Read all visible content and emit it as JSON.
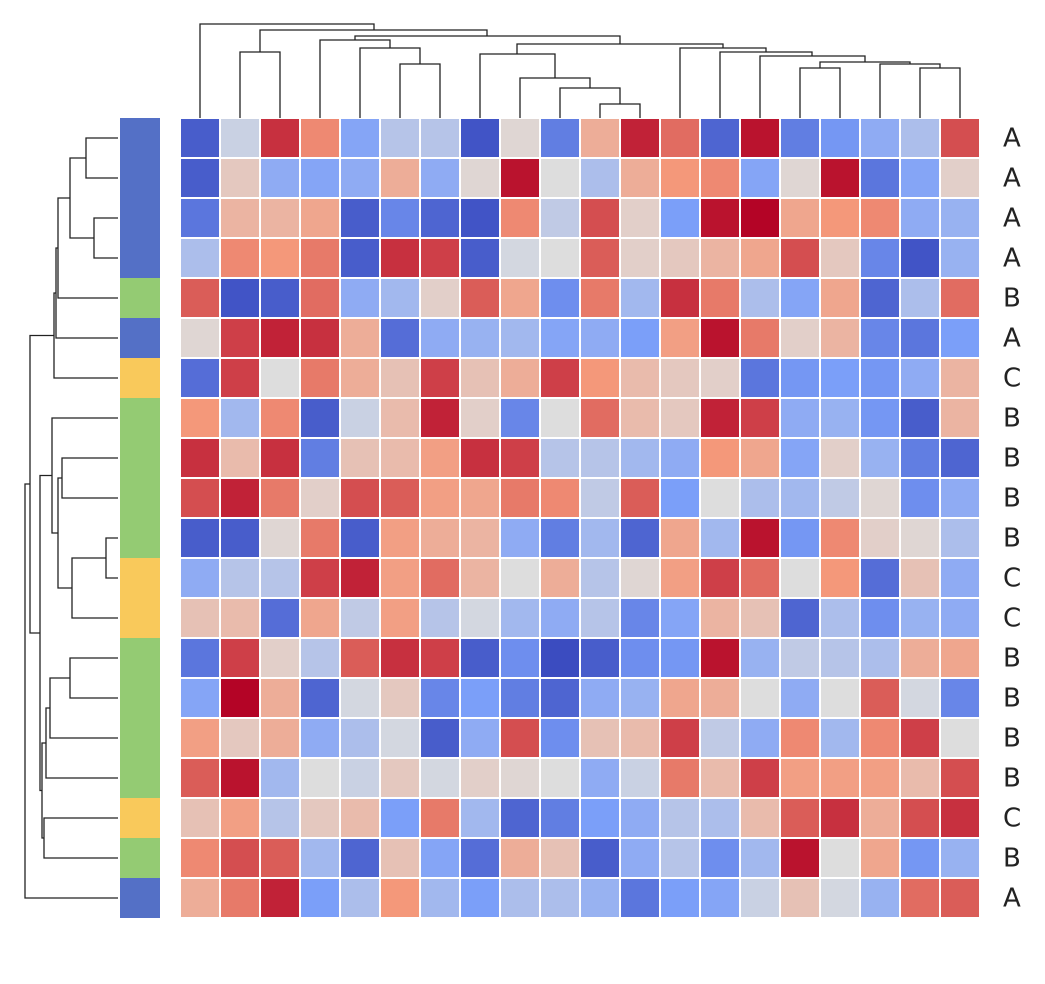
{
  "chart_data": {
    "type": "heatmap",
    "colormap": "coolwarm",
    "vlim": [
      -1,
      1
    ],
    "row_labels": [
      "A",
      "A",
      "A",
      "A",
      "B",
      "A",
      "C",
      "B",
      "B",
      "B",
      "B",
      "C",
      "C",
      "B",
      "B",
      "B",
      "B",
      "C",
      "B",
      "A"
    ],
    "group_colors": {
      "A": "#5470c6",
      "B": "#94cb73",
      "C": "#f9c95b"
    },
    "values": [
      [
        -0.9,
        -0.1,
        0.85,
        0.55,
        -0.45,
        -0.2,
        -0.2,
        -0.95,
        0.05,
        -0.7,
        0.35,
        0.9,
        0.65,
        -0.85,
        0.95,
        -0.7,
        -0.55,
        -0.4,
        -0.25,
        0.75
      ],
      [
        -0.9,
        0.15,
        -0.4,
        -0.45,
        -0.4,
        0.35,
        -0.4,
        0.05,
        0.95,
        0.0,
        -0.25,
        0.35,
        0.5,
        0.55,
        -0.45,
        0.05,
        0.95,
        -0.75,
        -0.45,
        0.1
      ],
      [
        -0.75,
        0.3,
        0.3,
        0.4,
        -0.9,
        -0.65,
        -0.85,
        -0.95,
        0.55,
        -0.15,
        0.75,
        0.1,
        -0.5,
        0.95,
        1.0,
        0.4,
        0.5,
        0.55,
        -0.4,
        -0.35
      ],
      [
        -0.25,
        0.55,
        0.5,
        0.6,
        -0.9,
        0.85,
        0.8,
        -0.9,
        -0.05,
        0.0,
        0.7,
        0.1,
        0.15,
        0.3,
        0.4,
        0.75,
        0.15,
        -0.65,
        -0.95,
        -0.35
      ],
      [
        0.7,
        -0.95,
        -0.9,
        0.65,
        -0.4,
        -0.3,
        0.1,
        0.7,
        0.4,
        -0.6,
        0.6,
        -0.3,
        0.85,
        0.6,
        -0.25,
        -0.45,
        0.4,
        -0.85,
        -0.25,
        0.65
      ],
      [
        0.05,
        0.8,
        0.9,
        0.85,
        0.35,
        -0.8,
        -0.4,
        -0.35,
        -0.3,
        -0.45,
        -0.4,
        -0.5,
        0.45,
        0.95,
        0.6,
        0.1,
        0.3,
        -0.65,
        -0.75,
        -0.5
      ],
      [
        -0.8,
        0.8,
        0.0,
        0.6,
        0.35,
        0.2,
        0.8,
        0.2,
        0.35,
        0.8,
        0.5,
        0.25,
        0.15,
        0.1,
        -0.75,
        -0.55,
        -0.5,
        -0.55,
        -0.4,
        0.3
      ],
      [
        0.5,
        -0.3,
        0.55,
        -0.9,
        -0.1,
        0.25,
        0.9,
        0.1,
        -0.65,
        0.0,
        0.65,
        0.25,
        0.15,
        0.9,
        0.8,
        -0.4,
        -0.35,
        -0.55,
        -0.9,
        0.3
      ],
      [
        0.85,
        0.25,
        0.85,
        -0.7,
        0.2,
        0.25,
        0.45,
        0.85,
        0.8,
        -0.2,
        -0.2,
        -0.3,
        -0.4,
        0.5,
        0.4,
        -0.45,
        0.1,
        -0.35,
        -0.7,
        -0.85
      ],
      [
        0.75,
        0.9,
        0.6,
        0.1,
        0.75,
        0.7,
        0.45,
        0.4,
        0.6,
        0.55,
        -0.15,
        0.7,
        -0.5,
        0.0,
        -0.25,
        -0.3,
        -0.15,
        0.05,
        -0.6,
        -0.4
      ],
      [
        -0.9,
        -0.9,
        0.05,
        0.6,
        -0.9,
        0.45,
        0.35,
        0.3,
        -0.4,
        -0.7,
        -0.3,
        -0.85,
        0.4,
        -0.3,
        0.95,
        -0.55,
        0.55,
        0.1,
        0.05,
        -0.25
      ],
      [
        -0.4,
        -0.2,
        -0.2,
        0.8,
        0.9,
        0.45,
        0.65,
        0.3,
        0.0,
        0.35,
        -0.2,
        0.05,
        0.45,
        0.8,
        0.65,
        0.0,
        0.5,
        -0.8,
        0.2,
        -0.4
      ],
      [
        0.2,
        0.25,
        -0.8,
        0.4,
        -0.15,
        0.45,
        -0.2,
        -0.05,
        -0.3,
        -0.4,
        -0.2,
        -0.65,
        -0.45,
        0.3,
        0.2,
        -0.85,
        -0.25,
        -0.6,
        -0.35,
        -0.4
      ],
      [
        -0.75,
        0.8,
        0.1,
        -0.2,
        0.7,
        0.85,
        0.8,
        -0.9,
        -0.6,
        -1.0,
        -0.9,
        -0.6,
        -0.55,
        0.95,
        -0.35,
        -0.15,
        -0.2,
        -0.25,
        0.35,
        0.4
      ],
      [
        -0.45,
        1.0,
        0.35,
        -0.85,
        -0.05,
        0.15,
        -0.65,
        -0.5,
        -0.7,
        -0.85,
        -0.4,
        -0.35,
        0.4,
        0.35,
        0.0,
        -0.4,
        0.0,
        0.7,
        -0.05,
        -0.65
      ],
      [
        0.45,
        0.15,
        0.35,
        -0.4,
        -0.25,
        -0.05,
        -0.9,
        -0.4,
        0.75,
        -0.6,
        0.2,
        0.25,
        0.8,
        -0.15,
        -0.4,
        0.55,
        -0.3,
        0.55,
        0.8,
        0.0
      ],
      [
        0.7,
        0.95,
        -0.3,
        0.0,
        -0.1,
        0.15,
        -0.05,
        0.1,
        0.05,
        0.0,
        -0.4,
        -0.1,
        0.6,
        0.25,
        0.8,
        0.45,
        0.45,
        0.45,
        0.25,
        0.75
      ],
      [
        0.2,
        0.45,
        -0.2,
        0.15,
        0.25,
        -0.5,
        0.6,
        -0.3,
        -0.85,
        -0.7,
        -0.5,
        -0.4,
        -0.2,
        -0.25,
        0.25,
        0.7,
        0.85,
        0.35,
        0.75,
        0.85
      ],
      [
        0.55,
        0.75,
        0.7,
        -0.3,
        -0.85,
        0.2,
        -0.45,
        -0.8,
        0.35,
        0.2,
        -0.9,
        -0.4,
        -0.2,
        -0.6,
        -0.3,
        0.95,
        0.0,
        0.4,
        -0.55,
        -0.35
      ],
      [
        0.35,
        0.6,
        0.9,
        -0.5,
        -0.25,
        0.5,
        -0.3,
        -0.5,
        -0.25,
        -0.25,
        -0.35,
        -0.75,
        -0.5,
        -0.45,
        -0.1,
        0.2,
        -0.05,
        -0.35,
        0.65,
        0.7
      ]
    ]
  }
}
